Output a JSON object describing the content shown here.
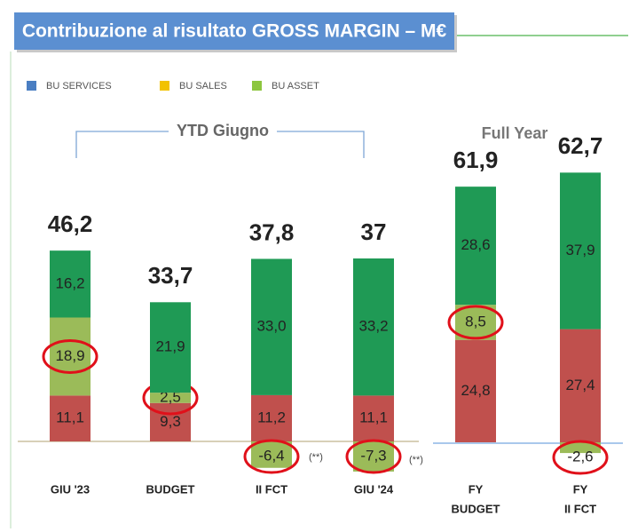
{
  "chart_data": {
    "type": "stacked_bar",
    "title": "Contribuzione al risultato GROSS MARGIN – M€",
    "annotations": [
      "YTD Giugno",
      "Full Year",
      "(**)",
      "(**)"
    ],
    "categories": [
      "GIU '23",
      "BUDGET",
      "II FCT",
      "GIU '24",
      [
        "FY",
        "BUDGET"
      ],
      [
        "FY",
        "II FCT"
      ]
    ],
    "series": [
      {
        "name": "BU SERVICES",
        "color": "#c0504d",
        "legend_color": "#4a7ec2",
        "values": [
          11.1,
          9.3,
          11.2,
          11.1,
          24.8,
          27.4
        ],
        "value_labels": [
          "11,1",
          "9,3",
          "11,2",
          "11,1",
          "24,8",
          "27,4"
        ]
      },
      {
        "name": "BU SALES",
        "color": "#9bbb59",
        "legend_color": "#f2c200",
        "values": [
          18.9,
          2.5,
          -6.4,
          -7.3,
          8.5,
          -2.6
        ],
        "value_labels": [
          "18,9",
          "2,5",
          "-6,4",
          "-7,3",
          "8,5",
          "-2,6"
        ]
      },
      {
        "name": "BU ASSET",
        "color": "#1f9a55",
        "legend_color": "#8dc63f",
        "values": [
          16.2,
          21.9,
          33.0,
          33.2,
          28.6,
          37.9
        ],
        "value_labels": [
          "16,2",
          "21,9",
          "33,0",
          "33,2",
          "28,6",
          "37,9"
        ]
      }
    ],
    "totals": [
      46.2,
      33.7,
      37.8,
      37,
      61.9,
      62.7
    ],
    "total_labels": [
      "46,2",
      "33,7",
      "37,8",
      "37",
      "61,9",
      "62,7"
    ]
  }
}
